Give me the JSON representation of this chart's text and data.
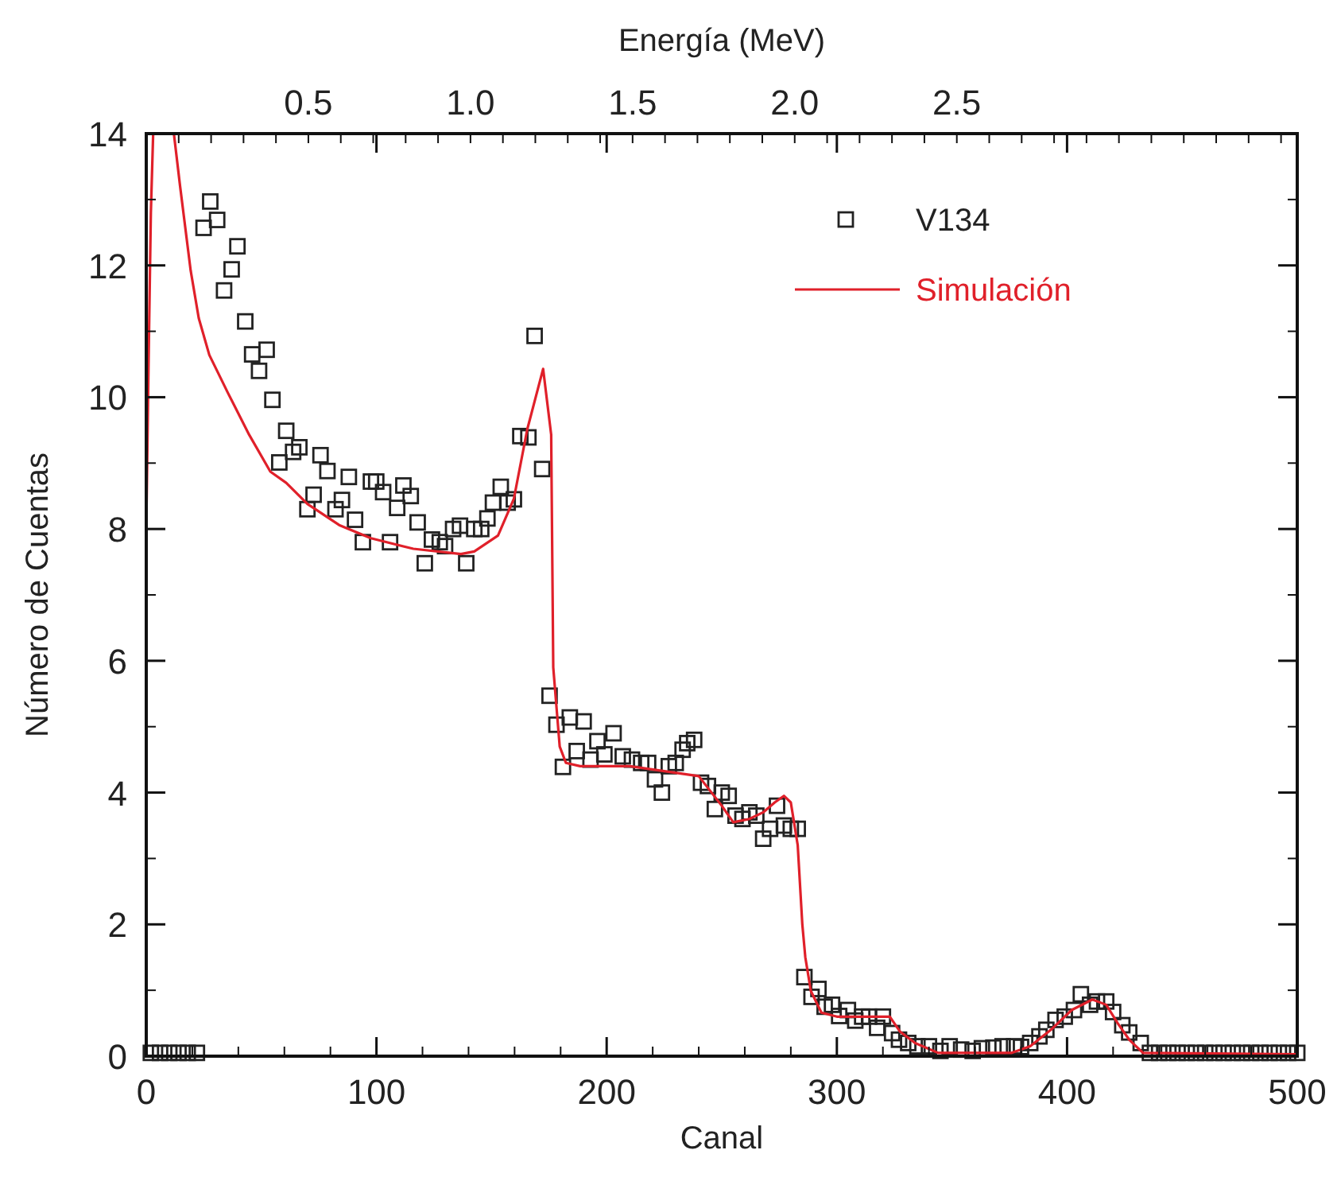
{
  "chart_data": {
    "type": "scatter",
    "xlabel": "Canal",
    "ylabel": "Número de Cuentas",
    "x2label": "Energía (MeV)",
    "xlim": [
      0,
      500
    ],
    "xticks": [
      0,
      100,
      200,
      300,
      400,
      500
    ],
    "ylim": [
      0,
      14
    ],
    "yticks": [
      0,
      2,
      4,
      6,
      8,
      10,
      12,
      14
    ],
    "x2lim": [
      0,
      3.55
    ],
    "x2ticks": [
      {
        "value": 0.5,
        "label": "0.5"
      },
      {
        "value": 1.0,
        "label": "1.0"
      },
      {
        "value": 1.5,
        "label": "1.5"
      },
      {
        "value": 2.0,
        "label": "2.0"
      },
      {
        "value": 2.5,
        "label": "2.5"
      }
    ],
    "legend": "top right",
    "series": [
      {
        "name": "V134",
        "marker": "square",
        "color": "#222222",
        "x": [
          2,
          6,
          10,
          14,
          18,
          22,
          24.9,
          27.8,
          30.8,
          33.8,
          37.1,
          39.6,
          43,
          46,
          49,
          52.3,
          54.8,
          57.8,
          60.8,
          63.8,
          66.5,
          70,
          72.7,
          75.7,
          78.7,
          82.2,
          85,
          88,
          90.7,
          94.1,
          97.6,
          99.9,
          102.9,
          105.9,
          109,
          111.7,
          114.9,
          117.9,
          121,
          124.1,
          127.5,
          129.8,
          133.3,
          136.3,
          139,
          142.5,
          145.5,
          148.2,
          150.6,
          154,
          157,
          159.7,
          162.5,
          166,
          168.7,
          172,
          175.2,
          178.2,
          181,
          184,
          187,
          190,
          193,
          196,
          199,
          203,
          207,
          211,
          215,
          218,
          221,
          224,
          227,
          230,
          233,
          235,
          238,
          241,
          244,
          247,
          250,
          253,
          256,
          259,
          262,
          265,
          268,
          271,
          274,
          277,
          280,
          283,
          285.9,
          289,
          292,
          294.7,
          297.9,
          301,
          304.8,
          308,
          311,
          314,
          317.5,
          320,
          324,
          327,
          331,
          335,
          340,
          345,
          349,
          354,
          359,
          363,
          368,
          372,
          377,
          380,
          384,
          388,
          391,
          395,
          399,
          403,
          406,
          410,
          413,
          417,
          420,
          424,
          427,
          432,
          436,
          440,
          444,
          448,
          452,
          456,
          460,
          464,
          468,
          472,
          476,
          480,
          484,
          488,
          492,
          496,
          500
        ],
        "values": [
          0.05,
          0.05,
          0.05,
          0.05,
          0.05,
          0.05,
          12.57,
          12.97,
          12.69,
          11.62,
          11.94,
          12.29,
          11.15,
          10.65,
          10.4,
          10.72,
          9.96,
          9.01,
          9.49,
          9.17,
          9.24,
          8.3,
          8.52,
          9.12,
          8.88,
          8.3,
          8.44,
          8.79,
          8.14,
          7.8,
          8.72,
          8.72,
          8.56,
          7.8,
          8.32,
          8.66,
          8.5,
          8.1,
          7.48,
          7.84,
          7.8,
          7.74,
          8.0,
          8.05,
          7.48,
          8.0,
          8.0,
          8.16,
          8.4,
          8.64,
          8.4,
          8.45,
          9.41,
          9.39,
          10.93,
          8.91,
          5.47,
          5.03,
          4.39,
          5.14,
          4.63,
          5.08,
          4.5,
          4.78,
          4.58,
          4.9,
          4.55,
          4.5,
          4.45,
          4.45,
          4.2,
          4.0,
          4.4,
          4.45,
          4.65,
          4.75,
          4.8,
          4.15,
          4.1,
          3.75,
          4.0,
          3.95,
          3.65,
          3.6,
          3.7,
          3.65,
          3.3,
          3.45,
          3.8,
          3.5,
          3.45,
          3.45,
          1.2,
          0.9,
          1.02,
          0.75,
          0.78,
          0.61,
          0.7,
          0.54,
          0.6,
          0.6,
          0.43,
          0.6,
          0.35,
          0.25,
          0.2,
          0.15,
          0.15,
          0.08,
          0.15,
          0.1,
          0.08,
          0.12,
          0.13,
          0.15,
          0.15,
          0.14,
          0.2,
          0.3,
          0.4,
          0.55,
          0.6,
          0.7,
          0.94,
          0.78,
          0.83,
          0.83,
          0.67,
          0.47,
          0.36,
          0.2,
          0.05,
          0.05,
          0.05,
          0.05,
          0.05,
          0.05,
          0.05,
          0.05,
          0.05,
          0.05,
          0.05,
          0.05,
          0.05,
          0.05,
          0.05,
          0.05,
          0.05
        ]
      },
      {
        "name": "Simulación",
        "type": "line",
        "line_style": "solid",
        "color": "#e0202a",
        "x": [
          0,
          1,
          2,
          3,
          7,
          12,
          14.7,
          19.3,
          22.8,
          27.4,
          35.4,
          44.7,
          53.9,
          60.8,
          70,
          83.8,
          97.6,
          116,
          136.7,
          142.5,
          152.8,
          159.7,
          165.5,
          172.4,
          175.9,
          176.8,
          179.6,
          182.3,
          188.5,
          210,
          240,
          250,
          255,
          262,
          268,
          273,
          277,
          280,
          283,
          285,
          286.3,
          288.7,
          293.3,
          300,
          323,
          327.5,
          334,
          344,
          376,
          384,
          393,
          402,
          411,
          417,
          422,
          427,
          433,
          500
        ],
        "values": [
          8.0,
          10.5,
          12.8,
          14,
          null,
          14,
          13.2,
          11.92,
          11.2,
          10.64,
          10.07,
          9.43,
          8.87,
          8.7,
          8.38,
          8.06,
          7.86,
          7.7,
          7.62,
          7.66,
          7.9,
          8.46,
          9.51,
          10.43,
          9.43,
          5.9,
          4.7,
          4.45,
          4.4,
          4.4,
          4.25,
          3.8,
          3.55,
          3.6,
          3.7,
          3.85,
          3.95,
          3.85,
          3.2,
          2.0,
          1.5,
          0.99,
          0.66,
          0.6,
          0.6,
          0.37,
          0.2,
          0.05,
          0.05,
          0.15,
          0.4,
          0.7,
          0.86,
          0.78,
          0.5,
          0.25,
          0.05,
          0.03
        ]
      }
    ]
  }
}
